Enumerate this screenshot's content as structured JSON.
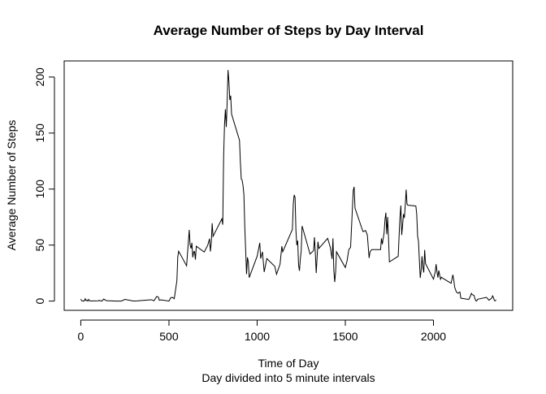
{
  "chart_data": {
    "type": "line",
    "title": "Average Number of Steps by Day Interval",
    "xlabel": "Time of Day",
    "subtitle": "Day divided into 5 minute intervals",
    "ylabel": "Average Number of Steps",
    "color": "#000000",
    "x": [
      0,
      5,
      10,
      15,
      20,
      25,
      30,
      35,
      40,
      45,
      50,
      55,
      100,
      105,
      110,
      115,
      120,
      130,
      145,
      200,
      230,
      250,
      300,
      320,
      340,
      400,
      415,
      430,
      440,
      445,
      455,
      500,
      510,
      520,
      530,
      545,
      550,
      555,
      600,
      615,
      620,
      625,
      630,
      635,
      640,
      645,
      650,
      655,
      700,
      720,
      730,
      735,
      740,
      745,
      750,
      800,
      805,
      810,
      815,
      820,
      825,
      830,
      835,
      840,
      845,
      850,
      855,
      900,
      905,
      910,
      915,
      920,
      925,
      930,
      935,
      940,
      945,
      950,
      955,
      1000,
      1015,
      1020,
      1030,
      1040,
      1055,
      1100,
      1110,
      1130,
      1140,
      1145,
      1200,
      1205,
      1210,
      1215,
      1220,
      1225,
      1230,
      1235,
      1240,
      1245,
      1250,
      1255,
      1300,
      1320,
      1325,
      1330,
      1335,
      1340,
      1345,
      1350,
      1400,
      1415,
      1425,
      1430,
      1435,
      1440,
      1445,
      1450,
      1500,
      1510,
      1520,
      1530,
      1545,
      1550,
      1555,
      1600,
      1615,
      1625,
      1635,
      1640,
      1650,
      1700,
      1705,
      1710,
      1720,
      1725,
      1730,
      1735,
      1740,
      1745,
      1750,
      1800,
      1805,
      1810,
      1815,
      1820,
      1825,
      1830,
      1835,
      1840,
      1845,
      1850,
      1855,
      1900,
      1905,
      1910,
      1915,
      1920,
      1925,
      1930,
      1935,
      1940,
      1945,
      1950,
      1955,
      2000,
      2010,
      2015,
      2020,
      2025,
      2030,
      2040,
      2045,
      2055,
      2100,
      2110,
      2115,
      2120,
      2130,
      2140,
      2145,
      2150,
      2155,
      2200,
      2210,
      2215,
      2220,
      2230,
      2235,
      2240,
      2245,
      2250,
      2300,
      2315,
      2330,
      2335,
      2340,
      2345,
      2350,
      2355
    ],
    "values": [
      1.7,
      0.3,
      0.1,
      0.2,
      0.1,
      2.1,
      0.5,
      0.9,
      0,
      1.5,
      0.3,
      0.1,
      0.3,
      0.7,
      0.2,
      0.3,
      0,
      1.8,
      0.4,
      0,
      0,
      1.5,
      0,
      0.2,
      0.5,
      1.2,
      0.3,
      4.1,
      3.5,
      0.8,
      1.1,
      0,
      3,
      3.3,
      2.1,
      18.3,
      39.5,
      44.5,
      31.5,
      63.5,
      50,
      47,
      52,
      39,
      44,
      44.2,
      37,
      49,
      43.8,
      49.9,
      55.7,
      44.3,
      52.3,
      69.5,
      57.8,
      73.4,
      68.2,
      129.4,
      157.5,
      171.2,
      155.4,
      177.3,
      206.2,
      195.9,
      179.6,
      183.4,
      167,
      143.5,
      124,
      109,
      108,
      103,
      95,
      66,
      45,
      24,
      39,
      35,
      21,
      40,
      52,
      38,
      44,
      26,
      38,
      31,
      24,
      33,
      49,
      44,
      64,
      87,
      94.8,
      92.8,
      63,
      50,
      54,
      32,
      27,
      37.7,
      45,
      67,
      42,
      45,
      57,
      43,
      25,
      39,
      53,
      47,
      56,
      48,
      37.6,
      56,
      27.5,
      17,
      26,
      44,
      30,
      36,
      46,
      48,
      98.7,
      102,
      83,
      62,
      63,
      59,
      38.5,
      44,
      46,
      46,
      56,
      50.7,
      61,
      72.7,
      78.9,
      59.7,
      75,
      56.5,
      35,
      40,
      58,
      74.7,
      85.3,
      59,
      67.8,
      77.7,
      74.2,
      85.3,
      99.5,
      86.6,
      85.6,
      84.9,
      77.8,
      58,
      53.4,
      36.3,
      20.7,
      27.4,
      40,
      30.2,
      25.5,
      45.7,
      33.5,
      19.6,
      26,
      33,
      26,
      21,
      27.3,
      19.5,
      21.3,
      20.2,
      15.9,
      23.5,
      19.2,
      12.5,
      8,
      7,
      7.8,
      8.1,
      2.6,
      1.5,
      4.6,
      6.9,
      5.7,
      5.1,
      2.2,
      0.3,
      0.1,
      1.6,
      3.3,
      0.8,
      2.6,
      4.7,
      3.3,
      0.6,
      0.2,
      1.1
    ],
    "xlim": [
      -94.2,
      2449.2
    ],
    "ylim": [
      -8.25,
      214.4
    ],
    "xticks": [
      0,
      500,
      1000,
      1500,
      2000
    ],
    "yticks": [
      0,
      50,
      100,
      150,
      200
    ]
  }
}
